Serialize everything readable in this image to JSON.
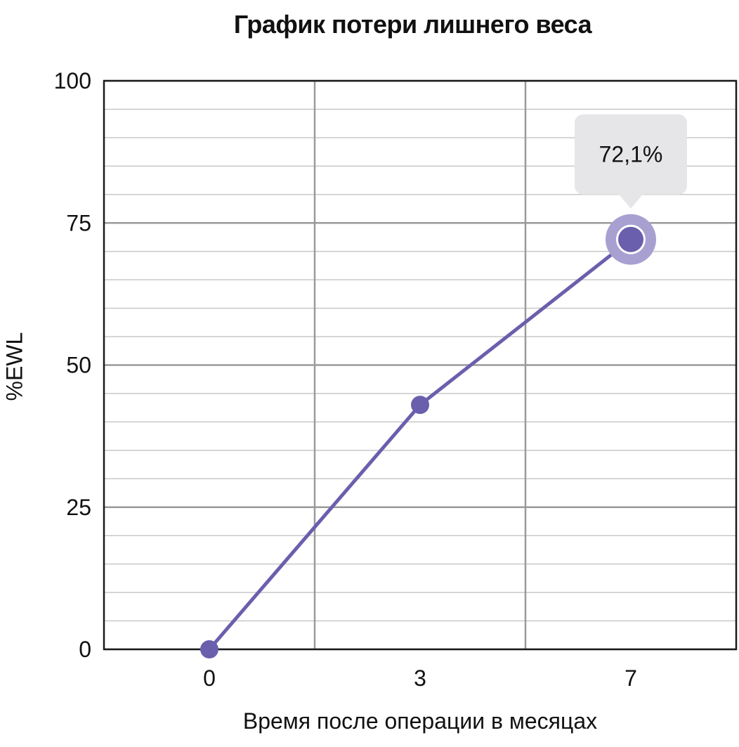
{
  "chart_data": {
    "type": "line",
    "title": "График потери лишнего веса",
    "xlabel": "Время после операции в месяцах",
    "ylabel": "%EWL",
    "categories": [
      "0",
      "3",
      "7"
    ],
    "series": [
      {
        "values": [
          0,
          43,
          72.1
        ]
      }
    ],
    "ylim": [
      0,
      100
    ],
    "yticks": [
      0,
      25,
      50,
      75,
      100
    ],
    "grid": true,
    "annotation": {
      "category": "7",
      "text": "72,1%"
    },
    "colors": {
      "line": "#6a5fad",
      "highlight_ring": "#a8a0d1",
      "callout_bg": "#e6e6e8",
      "grid_major": "#9a9a9a",
      "grid_minor": "#c8c8c8"
    }
  }
}
